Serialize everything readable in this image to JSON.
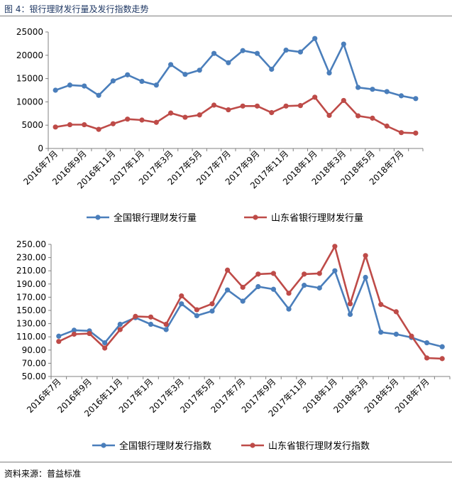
{
  "figure": {
    "title": "图 4：银行理财发行量及发行指数走势",
    "source": "资料来源：普益标准"
  },
  "chart_data": [
    {
      "type": "line",
      "title": "",
      "xlabel": "",
      "ylabel": "",
      "ylim": [
        0,
        25000
      ],
      "yticks": [
        "0",
        "5000",
        "10000",
        "15000",
        "20000",
        "25000"
      ],
      "yticks_values": [
        0,
        5000,
        10000,
        15000,
        20000,
        25000
      ],
      "x_tick_labels": [
        "2016年7月",
        "2016年9月",
        "2016年11月",
        "2017年1月",
        "2017年3月",
        "2017年5月",
        "2017年7月",
        "2017年9月",
        "2017年11月",
        "2018年1月",
        "2018年3月",
        "2018年5月",
        "2018年7月"
      ],
      "x": [
        "2016-07",
        "2016-08",
        "2016-09",
        "2016-10",
        "2016-11",
        "2016-12",
        "2017-01",
        "2017-02",
        "2017-03",
        "2017-04",
        "2017-05",
        "2017-06",
        "2017-07",
        "2017-08",
        "2017-09",
        "2017-10",
        "2017-11",
        "2017-12",
        "2018-01",
        "2018-02",
        "2018-03",
        "2018-04",
        "2018-05",
        "2018-06",
        "2018-07",
        "2018-08"
      ],
      "series": [
        {
          "name": "全国银行理财发行量",
          "color": "#4a7ebb",
          "values": [
            12500,
            13600,
            13400,
            11400,
            14500,
            15800,
            14400,
            13600,
            18000,
            15900,
            16800,
            20400,
            18400,
            21000,
            20400,
            17000,
            21100,
            20700,
            23600,
            16200,
            22400,
            13100,
            12700,
            12200,
            11300,
            10700
          ]
        },
        {
          "name": "山东省银行理财发行量",
          "color": "#be4b48",
          "values": [
            4600,
            5100,
            5100,
            4100,
            5300,
            6300,
            6100,
            5600,
            7600,
            6700,
            7200,
            9300,
            8300,
            9100,
            9100,
            7700,
            9100,
            9200,
            11000,
            7100,
            10300,
            7000,
            6500,
            4800,
            3400,
            3300
          ]
        }
      ],
      "legend": "bottom-center"
    },
    {
      "type": "line",
      "title": "",
      "xlabel": "",
      "ylabel": "",
      "ylim": [
        50,
        250
      ],
      "yticks": [
        "50.00",
        "70.00",
        "90.00",
        "110.00",
        "130.00",
        "150.00",
        "170.00",
        "190.00",
        "210.00",
        "230.00",
        "250.00"
      ],
      "yticks_values": [
        50,
        70,
        90,
        110,
        130,
        150,
        170,
        190,
        210,
        230,
        250
      ],
      "x_tick_labels": [
        "2016年7月",
        "2016年9月",
        "2016年11月",
        "2017年1月",
        "2017年3月",
        "2017年5月",
        "2017年7月",
        "2017年9月",
        "2017年11月",
        "2018年1月",
        "2018年3月",
        "2018年5月",
        "2018年7月"
      ],
      "x": [
        "2016-07",
        "2016-08",
        "2016-09",
        "2016-10",
        "2016-11",
        "2016-12",
        "2017-01",
        "2017-02",
        "2017-03",
        "2017-04",
        "2017-05",
        "2017-06",
        "2017-07",
        "2017-08",
        "2017-09",
        "2017-10",
        "2017-11",
        "2017-12",
        "2018-01",
        "2018-02",
        "2018-03",
        "2018-04",
        "2018-05",
        "2018-06",
        "2018-07",
        "2018-08"
      ],
      "series": [
        {
          "name": "全国银行理财发行指数",
          "color": "#4a7ebb",
          "values": [
            111,
            120,
            119,
            101,
            129,
            139,
            129,
            121,
            160,
            142,
            149,
            181,
            164,
            186,
            182,
            152,
            188,
            184,
            210,
            144,
            200,
            117,
            114,
            109,
            101,
            95
          ]
        },
        {
          "name": "山东省银行理财发行指数",
          "color": "#be4b48",
          "values": [
            103,
            114,
            115,
            93,
            121,
            141,
            140,
            129,
            172,
            151,
            160,
            211,
            185,
            205,
            206,
            176,
            205,
            206,
            247,
            160,
            233,
            159,
            148,
            111,
            78,
            77
          ]
        }
      ],
      "legend": "bottom-center"
    }
  ]
}
